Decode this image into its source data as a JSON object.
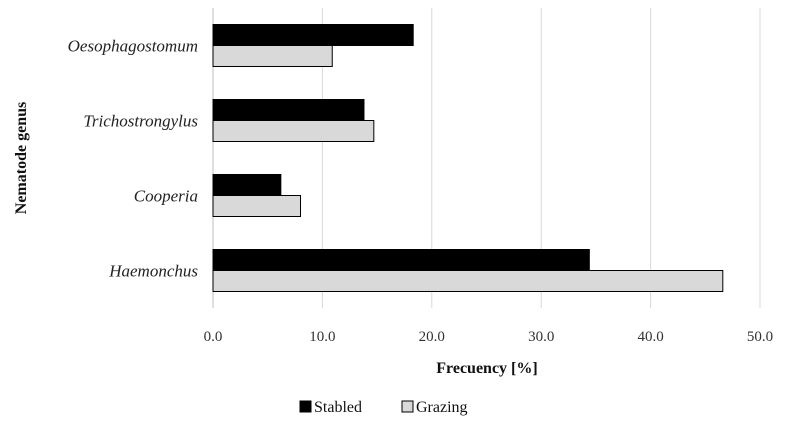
{
  "chart_data": {
    "type": "bar",
    "orientation": "horizontal",
    "categories": [
      "Oesophagostomum",
      "Trichostrongylus",
      "Cooperia",
      "Haemonchus"
    ],
    "series": [
      {
        "name": "Stabled",
        "values": [
          18.3,
          13.8,
          6.2,
          34.4
        ],
        "color": "#000000"
      },
      {
        "name": "Grazing",
        "values": [
          10.9,
          14.7,
          8.0,
          46.6
        ],
        "color": "#d9d9d9"
      }
    ],
    "xlabel": "Frecuency [%]",
    "ylabel": "Nematode genus",
    "xlim": [
      0,
      50
    ],
    "xticks": [
      "0.0",
      "10.0",
      "20.0",
      "30.0",
      "40.0",
      "50.0"
    ],
    "grid": true,
    "legend_position": "bottom"
  }
}
